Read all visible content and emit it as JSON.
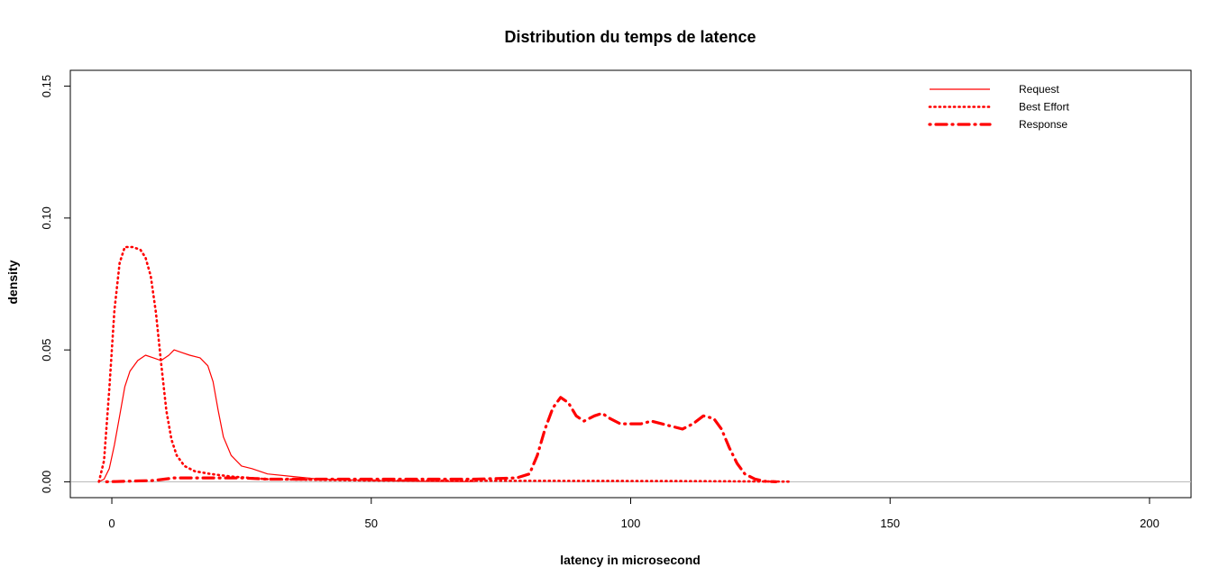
{
  "chart_data": {
    "type": "line",
    "title": "Distribution du temps de latence",
    "xlabel": "latency in microsecond",
    "ylabel": "density",
    "xlim": [
      -8,
      208
    ],
    "ylim": [
      -0.006,
      0.156
    ],
    "x_ticks": [
      0,
      50,
      100,
      150,
      200
    ],
    "x_tick_labels": [
      "0",
      "50",
      "100",
      "150",
      "200"
    ],
    "y_ticks": [
      0.0,
      0.05,
      0.1,
      0.15
    ],
    "y_tick_labels": [
      "0.00",
      "0.05",
      "0.10",
      "0.15"
    ],
    "baseline": 0,
    "grid": false,
    "legend_position": "top-right",
    "colors": {
      "series": "#ff0000",
      "baseline": "#bebebe",
      "axis": "#000000"
    },
    "series": [
      {
        "name": "Request",
        "line_style": "solid",
        "points": [
          [
            -2.5,
            0
          ],
          [
            -1.5,
            0.001
          ],
          [
            -0.5,
            0.005
          ],
          [
            0.5,
            0.014
          ],
          [
            1.5,
            0.025
          ],
          [
            2.5,
            0.036
          ],
          [
            3.5,
            0.042
          ],
          [
            5,
            0.046
          ],
          [
            6.5,
            0.048
          ],
          [
            8,
            0.047
          ],
          [
            9.5,
            0.046
          ],
          [
            11,
            0.048
          ],
          [
            12,
            0.05
          ],
          [
            13.5,
            0.049
          ],
          [
            15,
            0.048
          ],
          [
            17,
            0.047
          ],
          [
            18.5,
            0.044
          ],
          [
            19.5,
            0.038
          ],
          [
            20.5,
            0.027
          ],
          [
            21.5,
            0.017
          ],
          [
            23,
            0.01
          ],
          [
            25,
            0.006
          ],
          [
            27,
            0.005
          ],
          [
            30,
            0.003
          ],
          [
            35,
            0.002
          ],
          [
            40,
            0.001
          ],
          [
            50,
            0.0005
          ],
          [
            60,
            0.0002
          ],
          [
            70,
            0.0001
          ]
        ]
      },
      {
        "name": "Best Effort",
        "line_style": "dotted",
        "points": [
          [
            -2.5,
            0
          ],
          [
            -1.5,
            0.008
          ],
          [
            -0.5,
            0.035
          ],
          [
            0.5,
            0.065
          ],
          [
            1.5,
            0.083
          ],
          [
            2.5,
            0.089
          ],
          [
            4,
            0.089
          ],
          [
            5.5,
            0.088
          ],
          [
            6.5,
            0.085
          ],
          [
            7.5,
            0.078
          ],
          [
            8.5,
            0.064
          ],
          [
            9.5,
            0.045
          ],
          [
            10.5,
            0.027
          ],
          [
            11.5,
            0.016
          ],
          [
            12.5,
            0.01
          ],
          [
            14,
            0.006
          ],
          [
            16,
            0.004
          ],
          [
            19,
            0.003
          ],
          [
            23,
            0.002
          ],
          [
            30,
            0.001
          ],
          [
            50,
            0.0005
          ],
          [
            80,
            0.0004
          ],
          [
            110,
            0.0003
          ],
          [
            131,
            0.0001
          ]
        ]
      },
      {
        "name": "Response",
        "line_style": "dotdash",
        "points": [
          [
            -1,
            0
          ],
          [
            8,
            0.0005
          ],
          [
            12,
            0.0015
          ],
          [
            18,
            0.0015
          ],
          [
            25,
            0.0015
          ],
          [
            30,
            0.001
          ],
          [
            40,
            0.001
          ],
          [
            50,
            0.001
          ],
          [
            60,
            0.001
          ],
          [
            70,
            0.001
          ],
          [
            78,
            0.0015
          ],
          [
            80.5,
            0.003
          ],
          [
            82,
            0.01
          ],
          [
            83.5,
            0.02
          ],
          [
            85,
            0.028
          ],
          [
            86.5,
            0.032
          ],
          [
            88,
            0.03
          ],
          [
            89.5,
            0.025
          ],
          [
            91,
            0.023
          ],
          [
            93,
            0.025
          ],
          [
            94.5,
            0.026
          ],
          [
            96,
            0.024
          ],
          [
            98,
            0.022
          ],
          [
            100,
            0.022
          ],
          [
            102,
            0.022
          ],
          [
            104,
            0.023
          ],
          [
            106,
            0.022
          ],
          [
            108,
            0.021
          ],
          [
            110,
            0.02
          ],
          [
            112,
            0.022
          ],
          [
            114,
            0.025
          ],
          [
            116,
            0.024
          ],
          [
            117.5,
            0.02
          ],
          [
            119,
            0.013
          ],
          [
            120.5,
            0.007
          ],
          [
            122,
            0.003
          ],
          [
            124,
            0.001
          ],
          [
            126,
            0.0002
          ],
          [
            128,
            0
          ]
        ]
      }
    ]
  }
}
